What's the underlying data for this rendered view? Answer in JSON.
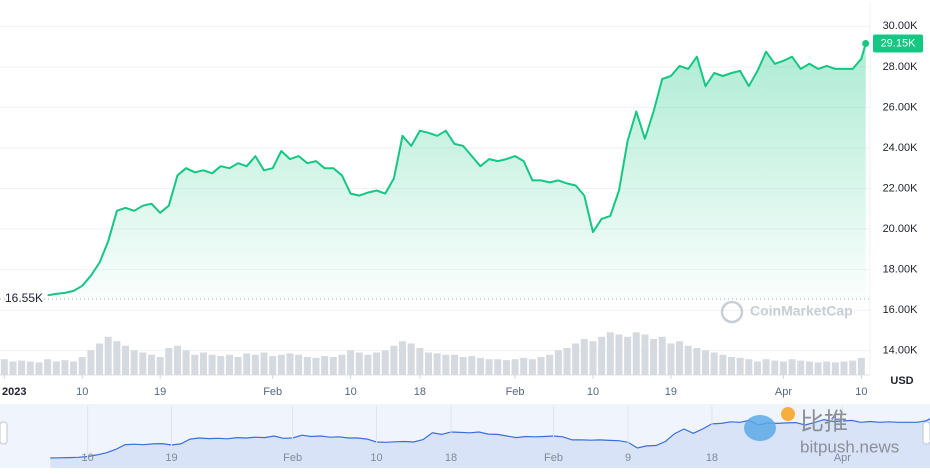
{
  "chart_data": {
    "type": "area",
    "color": "#16c784",
    "x": [
      5,
      6,
      7,
      8,
      9,
      10,
      11,
      12,
      13,
      14,
      15,
      16,
      17,
      18,
      19,
      20,
      21,
      22,
      23,
      24,
      25,
      26,
      27,
      28,
      29,
      30,
      31,
      32,
      33,
      34,
      35,
      36,
      37,
      38,
      39,
      40,
      41,
      42,
      43,
      44,
      45,
      46,
      47,
      48,
      49,
      50,
      51,
      52,
      53,
      54,
      55,
      56,
      57,
      58,
      59,
      60,
      61,
      62,
      63,
      64,
      65,
      66,
      67,
      68,
      69,
      70,
      71,
      72,
      73,
      74,
      75,
      76,
      77,
      78,
      79,
      80,
      81,
      82,
      83,
      84,
      85,
      86,
      87,
      88,
      89,
      90,
      91,
      92,
      93,
      94,
      95,
      96,
      97,
      98,
      99,
      99.5
    ],
    "values": [
      16730,
      16800,
      16850,
      16950,
      17200,
      17700,
      18350,
      19400,
      20900,
      21050,
      20900,
      21150,
      21250,
      20800,
      21150,
      22650,
      23000,
      22800,
      22900,
      22750,
      23100,
      23000,
      23250,
      23100,
      23600,
      22900,
      23000,
      23850,
      23450,
      23600,
      23250,
      23350,
      23000,
      23000,
      22650,
      21750,
      21650,
      21800,
      21900,
      21750,
      22500,
      24600,
      24100,
      24850,
      24750,
      24600,
      24850,
      24200,
      24100,
      23600,
      23100,
      23450,
      23350,
      23450,
      23600,
      23350,
      22400,
      22400,
      22300,
      22400,
      22250,
      22150,
      21650,
      19850,
      20500,
      20650,
      21900,
      24350,
      25800,
      24450,
      25800,
      27400,
      27550,
      28050,
      27900,
      28500,
      27050,
      27700,
      27550,
      27700,
      27800,
      27050,
      27800,
      28750,
      28150,
      28300,
      28500,
      27900,
      28150,
      27900,
      28050,
      27900,
      27900,
      27900,
      28400,
      29150
    ],
    "last_label": "29.15K",
    "open_price": {
      "value": 16550,
      "label": "16.55K"
    },
    "xlim": [
      -0.5,
      100
    ],
    "ylim": [
      12800,
      31200
    ],
    "xticks": [
      {
        "value": 0,
        "label": "2023"
      },
      {
        "value": 9,
        "label": "10"
      },
      {
        "value": 18,
        "label": "19"
      },
      {
        "value": 31,
        "label": "Feb"
      },
      {
        "value": 40,
        "label": "10"
      },
      {
        "value": 48,
        "label": "18"
      },
      {
        "value": 59,
        "label": "Feb"
      },
      {
        "value": 68,
        "label": "10"
      },
      {
        "value": 77,
        "label": "19"
      },
      {
        "value": 90,
        "label": "Apr"
      },
      {
        "value": 99,
        "label": "10"
      }
    ],
    "yticks": [
      {
        "value": 14000,
        "label": "14.00K"
      },
      {
        "value": 16000,
        "label": "16.00K"
      },
      {
        "value": 18000,
        "label": "18.00K"
      },
      {
        "value": 20000,
        "label": "20.00K"
      },
      {
        "value": 22000,
        "label": "22.00K"
      },
      {
        "value": 24000,
        "label": "24.00K"
      },
      {
        "value": 26000,
        "label": "26.00K"
      },
      {
        "value": 28000,
        "label": "28.00K"
      },
      {
        "value": 30000,
        "label": "30.00K"
      }
    ],
    "y_unit": "USD",
    "grid": true,
    "volume": {
      "color": "#d5d9e0",
      "lim": [
        0,
        100
      ],
      "x": [
        0,
        1,
        2,
        3,
        4,
        5,
        6,
        7,
        8,
        9,
        10,
        11,
        12,
        13,
        14,
        15,
        16,
        17,
        18,
        19,
        20,
        21,
        22,
        23,
        24,
        25,
        26,
        27,
        28,
        29,
        30,
        31,
        32,
        33,
        34,
        35,
        36,
        37,
        38,
        39,
        40,
        41,
        42,
        43,
        44,
        45,
        46,
        47,
        48,
        49,
        50,
        51,
        52,
        53,
        54,
        55,
        56,
        57,
        58,
        59,
        60,
        61,
        62,
        63,
        64,
        65,
        66,
        67,
        68,
        69,
        70,
        71,
        72,
        73,
        74,
        75,
        76,
        77,
        78,
        79,
        80,
        81,
        82,
        83,
        84,
        85,
        86,
        87,
        88,
        89,
        90,
        91,
        92,
        93,
        94,
        95,
        96,
        97,
        98,
        99
      ],
      "values": [
        35,
        30,
        32,
        30,
        28,
        35,
        30,
        33,
        30,
        40,
        55,
        70,
        85,
        75,
        65,
        55,
        50,
        45,
        40,
        60,
        65,
        55,
        45,
        50,
        45,
        42,
        45,
        40,
        48,
        45,
        50,
        42,
        45,
        48,
        45,
        40,
        38,
        42,
        40,
        45,
        55,
        50,
        45,
        50,
        55,
        65,
        75,
        70,
        60,
        50,
        48,
        45,
        45,
        40,
        42,
        38,
        35,
        35,
        33,
        35,
        38,
        35,
        40,
        45,
        55,
        60,
        70,
        80,
        75,
        85,
        95,
        90,
        85,
        95,
        90,
        80,
        85,
        70,
        75,
        65,
        60,
        55,
        50,
        45,
        40,
        38,
        35,
        30,
        35,
        32,
        30,
        35,
        32,
        30,
        28,
        30,
        28,
        30,
        32,
        38
      ]
    },
    "navigator": {
      "color": "#3a6fd8",
      "xlim": [
        -0.4,
        99.4
      ],
      "ylim": [
        13600,
        33000
      ],
      "xticks": [
        {
          "value": 9,
          "label": "10"
        },
        {
          "value": 18,
          "label": "19"
        },
        {
          "value": 31,
          "label": "Feb"
        },
        {
          "value": 40,
          "label": "10"
        },
        {
          "value": 48,
          "label": "18"
        },
        {
          "value": 59,
          "label": "Feb"
        },
        {
          "value": 67,
          "label": "9"
        },
        {
          "value": 76,
          "label": "18"
        },
        {
          "value": 90,
          "label": "Apr"
        }
      ]
    },
    "watermarks": [
      "CoinMarketCap",
      "比推",
      "bitpush.news"
    ]
  }
}
